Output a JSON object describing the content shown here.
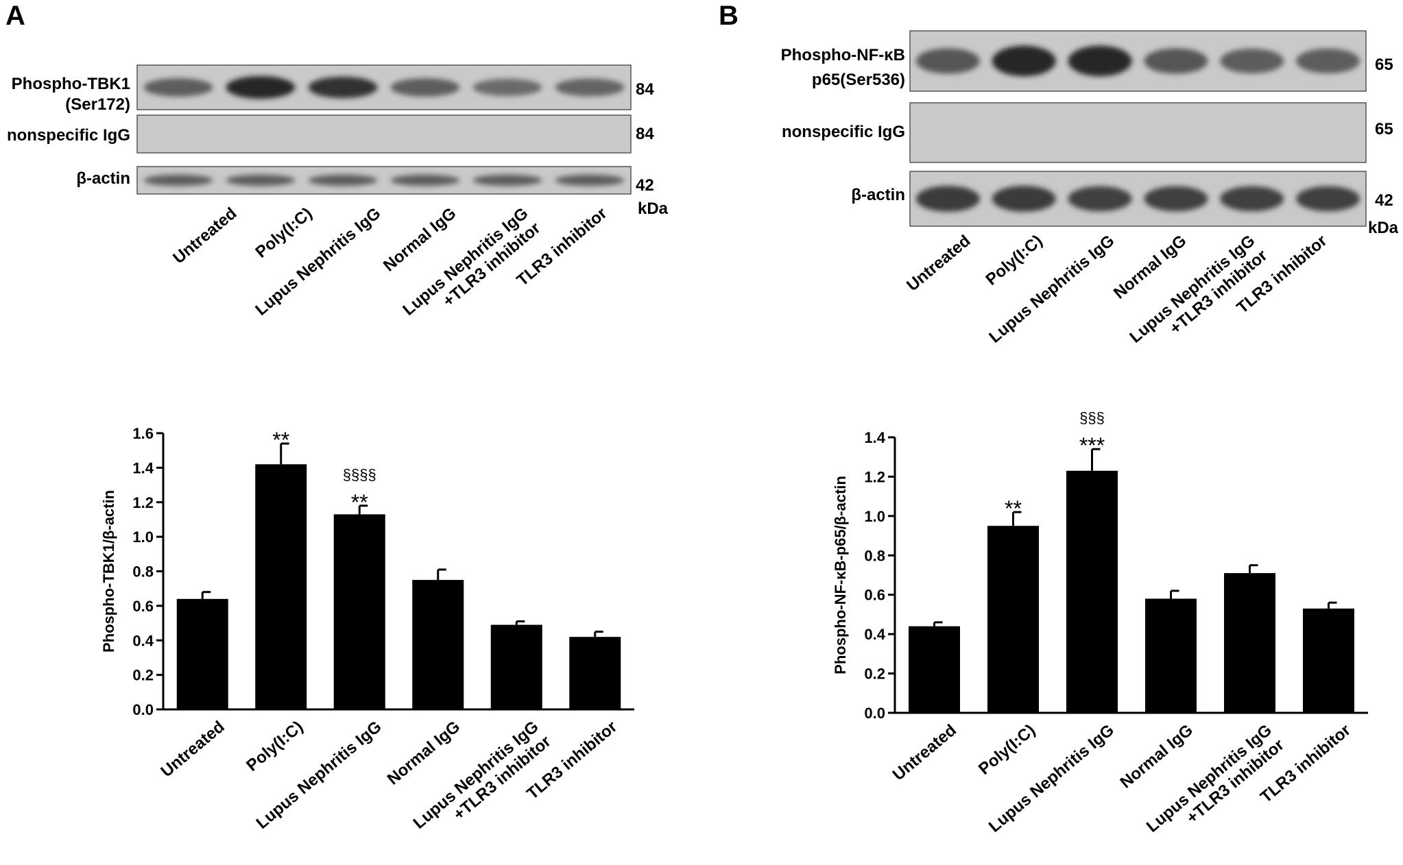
{
  "panels": [
    {
      "letter": "A",
      "blot": {
        "rows": [
          {
            "label_lines": [
              "Phospho-TBK1",
              "(Ser172)"
            ],
            "kda": "84",
            "band_intensity": [
              0.55,
              0.95,
              0.85,
              0.55,
              0.45,
              0.5
            ]
          },
          {
            "label_lines": [
              "nonspecific IgG"
            ],
            "kda": "84",
            "band_intensity": [
              0.05,
              0.05,
              0.05,
              0.05,
              0.05,
              0.05
            ]
          },
          {
            "label_lines": [
              "β-actin"
            ],
            "kda": "42",
            "band_intensity": [
              0.55,
              0.55,
              0.55,
              0.55,
              0.55,
              0.55
            ]
          }
        ],
        "kda_unit": "kDa"
      },
      "lane_labels": [
        [
          "Untreated"
        ],
        [
          "Poly(I:C)"
        ],
        [
          "Lupus Nephritis IgG"
        ],
        [
          "Normal IgG"
        ],
        [
          "Lupus Nephritis IgG",
          "+TLR3 inhibitor"
        ],
        [
          "TLR3 inhibitor"
        ]
      ]
    },
    {
      "letter": "B",
      "blot": {
        "rows": [
          {
            "label_lines": [
              "Phospho-NF-κB",
              "p65(Ser536)"
            ],
            "kda": "65",
            "band_intensity": [
              0.6,
              0.95,
              0.95,
              0.6,
              0.55,
              0.55
            ]
          },
          {
            "label_lines": [
              "nonspecific IgG"
            ],
            "kda": "65",
            "band_intensity": [
              0.05,
              0.05,
              0.05,
              0.05,
              0.05,
              0.05
            ]
          },
          {
            "label_lines": [
              "β-actin"
            ],
            "kda": "42",
            "band_intensity": [
              0.8,
              0.8,
              0.75,
              0.75,
              0.75,
              0.75
            ]
          }
        ],
        "kda_unit": "kDa"
      },
      "lane_labels": [
        [
          "Untreated"
        ],
        [
          "Poly(I:C)"
        ],
        [
          "Lupus Nephritis IgG"
        ],
        [
          "Normal IgG"
        ],
        [
          "Lupus Nephritis IgG",
          "+TLR3 inhibitor"
        ],
        [
          "TLR3 inhibitor"
        ]
      ]
    }
  ],
  "chart_data": [
    {
      "type": "bar",
      "panel": "A",
      "categories": [
        [
          "Untreated"
        ],
        [
          "Poly(I:C)"
        ],
        [
          "Lupus Nephritis IgG"
        ],
        [
          "Normal IgG"
        ],
        [
          "Lupus Nephritis IgG",
          "+TLR3 inhibitor"
        ],
        [
          "TLR3 inhibitor"
        ]
      ],
      "values": [
        0.64,
        1.42,
        1.13,
        0.75,
        0.49,
        0.42
      ],
      "errors": [
        0.04,
        0.12,
        0.05,
        0.06,
        0.02,
        0.03
      ],
      "annotations": [
        {
          "index": 1,
          "lines": [
            "**"
          ]
        },
        {
          "index": 2,
          "lines": [
            "§§§§",
            "**"
          ]
        }
      ],
      "ylabel": "Phospho-TBK1/β-actin",
      "ylim": [
        0,
        1.6
      ],
      "yticks": [
        "0.0",
        "0.2",
        "0.4",
        "0.6",
        "0.8",
        "1.0",
        "1.2",
        "1.4",
        "1.6"
      ],
      "bar_color": "#000000"
    },
    {
      "type": "bar",
      "panel": "B",
      "categories": [
        [
          "Untreated"
        ],
        [
          "Poly(I:C)"
        ],
        [
          "Lupus Nephritis IgG"
        ],
        [
          "Normal IgG"
        ],
        [
          "Lupus Nephritis IgG",
          "+TLR3 inhibitor"
        ],
        [
          "TLR3 inhibitor"
        ]
      ],
      "values": [
        0.44,
        0.95,
        1.23,
        0.58,
        0.71,
        0.53
      ],
      "errors": [
        0.02,
        0.07,
        0.11,
        0.04,
        0.04,
        0.03
      ],
      "annotations": [
        {
          "index": 1,
          "lines": [
            "**"
          ]
        },
        {
          "index": 2,
          "lines": [
            "§§§",
            "***"
          ]
        }
      ],
      "ylabel": "Phospho-NF-κB-p65/β-actin",
      "ylim": [
        0,
        1.4
      ],
      "yticks": [
        "0.0",
        "0.2",
        "0.4",
        "0.6",
        "0.8",
        "1.0",
        "1.2",
        "1.4"
      ],
      "bar_color": "#000000"
    }
  ]
}
